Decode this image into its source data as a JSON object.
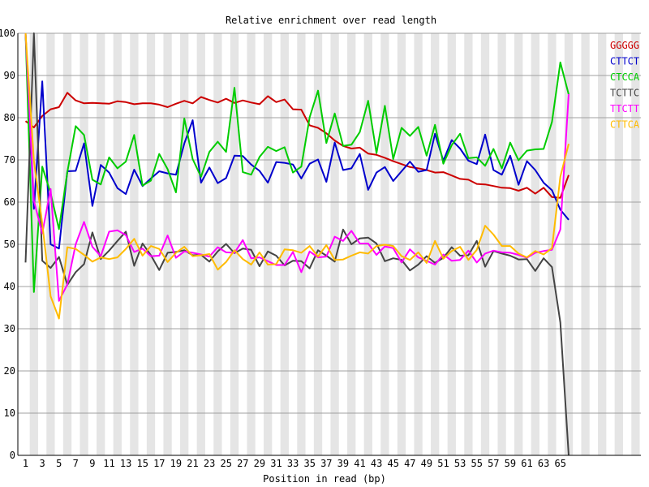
{
  "chart_data": {
    "type": "line",
    "title": "Relative enrichment over read length",
    "xlabel": "Position in read (bp)",
    "ylabel": "",
    "xlim": [
      1,
      66
    ],
    "ylim": [
      0,
      100
    ],
    "yticks": [
      0,
      10,
      20,
      30,
      40,
      50,
      60,
      70,
      80,
      90,
      100
    ],
    "xticks": [
      1,
      3,
      5,
      7,
      9,
      11,
      13,
      15,
      17,
      19,
      21,
      23,
      25,
      27,
      29,
      31,
      33,
      35,
      37,
      39,
      41,
      43,
      45,
      47,
      49,
      51,
      53,
      55,
      57,
      59,
      61,
      63,
      65
    ],
    "grid": true,
    "legend_position": "top-right",
    "series": [
      {
        "name": "GGGGG",
        "color": "#cc0000",
        "x": [
          1,
          2,
          3,
          4,
          5,
          6,
          7,
          8,
          9,
          10,
          11,
          12,
          13,
          14,
          15,
          16,
          17,
          18,
          19,
          20,
          21,
          22,
          23,
          24,
          25,
          26,
          27,
          28,
          29,
          30,
          31,
          32,
          33,
          34,
          35,
          36,
          37,
          38,
          39,
          40,
          41,
          42,
          43,
          44,
          45,
          46,
          47,
          48,
          49,
          50,
          51,
          52,
          53,
          54,
          55,
          56,
          57,
          58,
          59,
          60,
          61,
          62,
          63,
          64,
          65,
          66
        ],
        "values": [
          79.2,
          77.7,
          80.4,
          82.0,
          82.5,
          85.9,
          84.1,
          83.4,
          83.5,
          83.4,
          83.3,
          83.9,
          83.7,
          83.2,
          83.4,
          83.4,
          83.1,
          82.5,
          83.3,
          84.0,
          83.4,
          84.9,
          84.2,
          83.6,
          84.5,
          83.5,
          84.1,
          83.6,
          83.2,
          85.1,
          83.7,
          84.3,
          82.0,
          81.9,
          78.2,
          77.6,
          76.3,
          74.6,
          73.3,
          72.7,
          72.9,
          71.5,
          71.2,
          70.5,
          69.7,
          69.0,
          68.3,
          68.0,
          67.6,
          67.0,
          67.1,
          66.3,
          65.5,
          65.3,
          64.3,
          64.2,
          63.8,
          63.4,
          63.3,
          62.7,
          63.4,
          62.0,
          63.4,
          61.2,
          61.0,
          66.4
        ]
      },
      {
        "name": "CTTCT",
        "color": "#0000cc",
        "x": [
          1,
          2,
          3,
          4,
          5,
          6,
          7,
          8,
          9,
          10,
          11,
          12,
          13,
          14,
          15,
          16,
          17,
          18,
          19,
          20,
          21,
          22,
          23,
          24,
          25,
          26,
          27,
          28,
          29,
          30,
          31,
          32,
          33,
          34,
          35,
          36,
          37,
          38,
          39,
          40,
          41,
          42,
          43,
          44,
          45,
          46,
          47,
          48,
          49,
          50,
          51,
          52,
          53,
          54,
          55,
          56,
          57,
          58,
          59,
          60,
          61,
          62,
          63,
          64,
          65,
          66
        ],
        "values": [
          100,
          58.4,
          88.6,
          50.0,
          49.0,
          67.3,
          67.4,
          73.9,
          59.1,
          68.8,
          67.0,
          63.3,
          61.9,
          67.7,
          63.8,
          65.6,
          67.3,
          66.8,
          66.5,
          73.9,
          79.4,
          64.6,
          68.2,
          64.5,
          65.7,
          71.0,
          70.9,
          68.9,
          67.4,
          64.6,
          69.5,
          69.3,
          68.9,
          65.6,
          69.1,
          70.1,
          64.8,
          74.1,
          67.6,
          68.0,
          71.4,
          62.9,
          67.0,
          68.3,
          65.0,
          67.3,
          69.6,
          67.2,
          67.6,
          76.2,
          69.8,
          74.7,
          72.7,
          69.8,
          69.0,
          76.0,
          67.6,
          66.5,
          71.0,
          64.1,
          69.7,
          67.6,
          64.6,
          62.8,
          58.2,
          55.8
        ]
      },
      {
        "name": "CTCCA",
        "color": "#00cc00",
        "x": [
          1,
          2,
          3,
          4,
          5,
          6,
          7,
          8,
          9,
          10,
          11,
          12,
          13,
          14,
          15,
          16,
          17,
          18,
          19,
          20,
          21,
          22,
          23,
          24,
          25,
          26,
          27,
          28,
          29,
          30,
          31,
          32,
          33,
          34,
          35,
          36,
          37,
          38,
          39,
          40,
          41,
          42,
          43,
          44,
          45,
          46,
          47,
          48,
          49,
          50,
          51,
          52,
          53,
          54,
          55,
          56,
          57,
          58,
          59,
          60,
          61,
          62,
          63,
          64,
          65,
          66
        ],
        "values": [
          100,
          38.7,
          68.4,
          62.1,
          53.6,
          67.1,
          78.0,
          75.9,
          65.3,
          64.2,
          70.6,
          68.0,
          69.6,
          75.9,
          63.9,
          65.1,
          71.4,
          67.8,
          62.3,
          79.8,
          70.2,
          66.0,
          71.9,
          74.3,
          71.9,
          87.1,
          67.1,
          66.5,
          70.7,
          73.1,
          72.1,
          73.0,
          67.0,
          68.4,
          80.1,
          86.4,
          74.0,
          81.0,
          73.3,
          73.6,
          76.6,
          84.0,
          71.6,
          82.8,
          70.2,
          77.6,
          75.7,
          77.8,
          71.0,
          78.3,
          69.1,
          73.5,
          76.2,
          70.4,
          70.6,
          68.6,
          72.6,
          68.0,
          74.1,
          69.9,
          72.2,
          72.5,
          72.6,
          79.0,
          93.1,
          85.5
        ]
      },
      {
        "name": "TCTTC",
        "color": "#444444",
        "x": [
          1,
          2,
          3,
          4,
          5,
          6,
          7,
          8,
          9,
          10,
          11,
          12,
          13,
          14,
          15,
          16,
          17,
          18,
          19,
          20,
          21,
          22,
          23,
          24,
          25,
          26,
          27,
          28,
          29,
          30,
          31,
          32,
          33,
          34,
          35,
          36,
          37,
          38,
          39,
          40,
          41,
          42,
          43,
          44,
          45,
          46,
          47,
          48,
          49,
          50,
          51,
          52,
          53,
          54,
          55,
          56,
          57,
          58,
          59,
          60,
          61,
          62,
          63,
          64,
          65,
          66
        ],
        "values": [
          45.7,
          100,
          46.1,
          44.4,
          47.0,
          40.4,
          43.4,
          45.3,
          52.8,
          46.5,
          48.5,
          50.8,
          53.0,
          44.9,
          50.2,
          47.4,
          43.9,
          48.0,
          48.2,
          48.6,
          47.4,
          47.5,
          45.9,
          48.3,
          50.1,
          47.9,
          49.0,
          48.7,
          44.8,
          48.3,
          47.3,
          45.0,
          46.1,
          46.0,
          44.3,
          48.6,
          47.3,
          45.9,
          53.5,
          50.0,
          51.4,
          51.6,
          50.2,
          46.0,
          46.7,
          46.3,
          43.8,
          45.2,
          47.2,
          45.6,
          46.8,
          49.3,
          47.3,
          47.4,
          50.8,
          44.7,
          48.4,
          47.8,
          47.3,
          46.4,
          46.5,
          43.7,
          46.7,
          44.6,
          31.5,
          0.0
        ]
      },
      {
        "name": "TTCTT",
        "color": "#ff00ff",
        "x": [
          1,
          2,
          3,
          4,
          5,
          6,
          7,
          8,
          9,
          10,
          11,
          12,
          13,
          14,
          15,
          16,
          17,
          18,
          19,
          20,
          21,
          22,
          23,
          24,
          25,
          26,
          27,
          28,
          29,
          30,
          31,
          32,
          33,
          34,
          35,
          36,
          37,
          38,
          39,
          40,
          41,
          42,
          43,
          44,
          45,
          46,
          47,
          48,
          49,
          50,
          51,
          52,
          53,
          54,
          55,
          56,
          57,
          58,
          59,
          60,
          61,
          62,
          63,
          64,
          65,
          66
        ],
        "values": [
          100,
          60.3,
          52.6,
          63.1,
          36.6,
          40.5,
          50.0,
          55.3,
          49.4,
          47.2,
          53.0,
          53.3,
          52.2,
          48.2,
          49.0,
          47.2,
          47.3,
          52.1,
          46.8,
          48.3,
          48.0,
          47.6,
          47.1,
          49.3,
          48.1,
          48.0,
          51.0,
          46.7,
          46.9,
          46.0,
          45.1,
          45.1,
          48.2,
          43.4,
          48.3,
          46.9,
          47.1,
          51.8,
          50.8,
          53.2,
          50.2,
          50.2,
          47.5,
          49.5,
          49.1,
          45.7,
          48.8,
          46.9,
          46.1,
          45.2,
          47.6,
          46.1,
          46.3,
          48.5,
          45.7,
          47.8,
          48.5,
          48.1,
          48.0,
          47.5,
          46.8,
          48.0,
          48.4,
          48.7,
          53.5,
          85.6
        ]
      },
      {
        "name": "CTTCA",
        "color": "#ffbb00",
        "x": [
          1,
          2,
          3,
          4,
          5,
          6,
          7,
          8,
          9,
          10,
          11,
          12,
          13,
          14,
          15,
          16,
          17,
          18,
          19,
          20,
          21,
          22,
          23,
          24,
          25,
          26,
          27,
          28,
          29,
          30,
          31,
          32,
          33,
          34,
          35,
          36,
          37,
          38,
          39,
          40,
          41,
          42,
          43,
          44,
          45,
          46,
          47,
          48,
          49,
          50,
          51,
          52,
          53,
          54,
          55,
          56,
          57,
          58,
          59,
          60,
          61,
          62,
          63,
          64,
          65,
          66
        ],
        "values": [
          100,
          69.8,
          54.9,
          37.7,
          32.4,
          49.3,
          48.9,
          47.5,
          45.9,
          46.9,
          46.5,
          46.9,
          48.9,
          51.3,
          47.3,
          49.6,
          48.9,
          45.8,
          48.0,
          49.4,
          47.2,
          47.4,
          47.7,
          44.0,
          45.8,
          48.6,
          46.5,
          45.2,
          48.1,
          45.2,
          45.3,
          48.8,
          48.6,
          48.0,
          49.6,
          47.1,
          49.8,
          46.3,
          46.4,
          47.3,
          48.1,
          47.8,
          49.6,
          49.9,
          49.6,
          47.2,
          46.3,
          48.1,
          45.6,
          50.8,
          46.6,
          48.4,
          49.4,
          46.3,
          48.7,
          54.4,
          52.3,
          49.6,
          49.6,
          47.8,
          46.9,
          48.4,
          47.6,
          49.1,
          66.0,
          73.8
        ]
      }
    ]
  }
}
